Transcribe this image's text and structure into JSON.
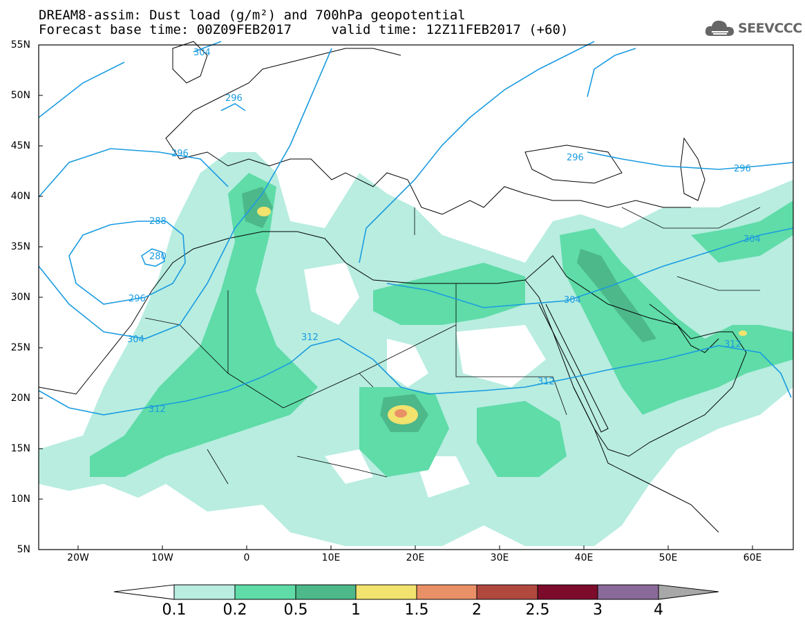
{
  "header": {
    "line1": "DREAM8-assim: Dust load (g/m²) and 700hPa geopotential",
    "line2": "Forecast base time: 00Z09FEB2017     valid time: 12Z11FEB2017 (+60)"
  },
  "logo": {
    "text": "SEEVCCC",
    "icon": "cloud-icon"
  },
  "map": {
    "lat_labels": [
      "55N",
      "50N",
      "45N",
      "40N",
      "35N",
      "30N",
      "25N",
      "20N",
      "15N",
      "10N",
      "5N"
    ],
    "lon_labels": [
      "20W",
      "10W",
      "0",
      "10E",
      "20E",
      "30E",
      "40E",
      "50E",
      "60E"
    ],
    "contour_labels": [
      "304",
      "312",
      "296",
      "296",
      "288",
      "280",
      "296",
      "304",
      "312",
      "312",
      "296",
      "296",
      "304",
      "304",
      "312"
    ],
    "contour_color": "#1a9be0"
  },
  "colorbar": {
    "levels": [
      "0.1",
      "0.2",
      "0.5",
      "1",
      "1.5",
      "2",
      "2.5",
      "3",
      "4"
    ],
    "colors": [
      "#ffffff",
      "#b8ede0",
      "#5fdca8",
      "#4db88a",
      "#f2e26e",
      "#ea9066",
      "#b0483e",
      "#7d0c2c",
      "#8a6a9a",
      "#a8a8a8"
    ]
  }
}
